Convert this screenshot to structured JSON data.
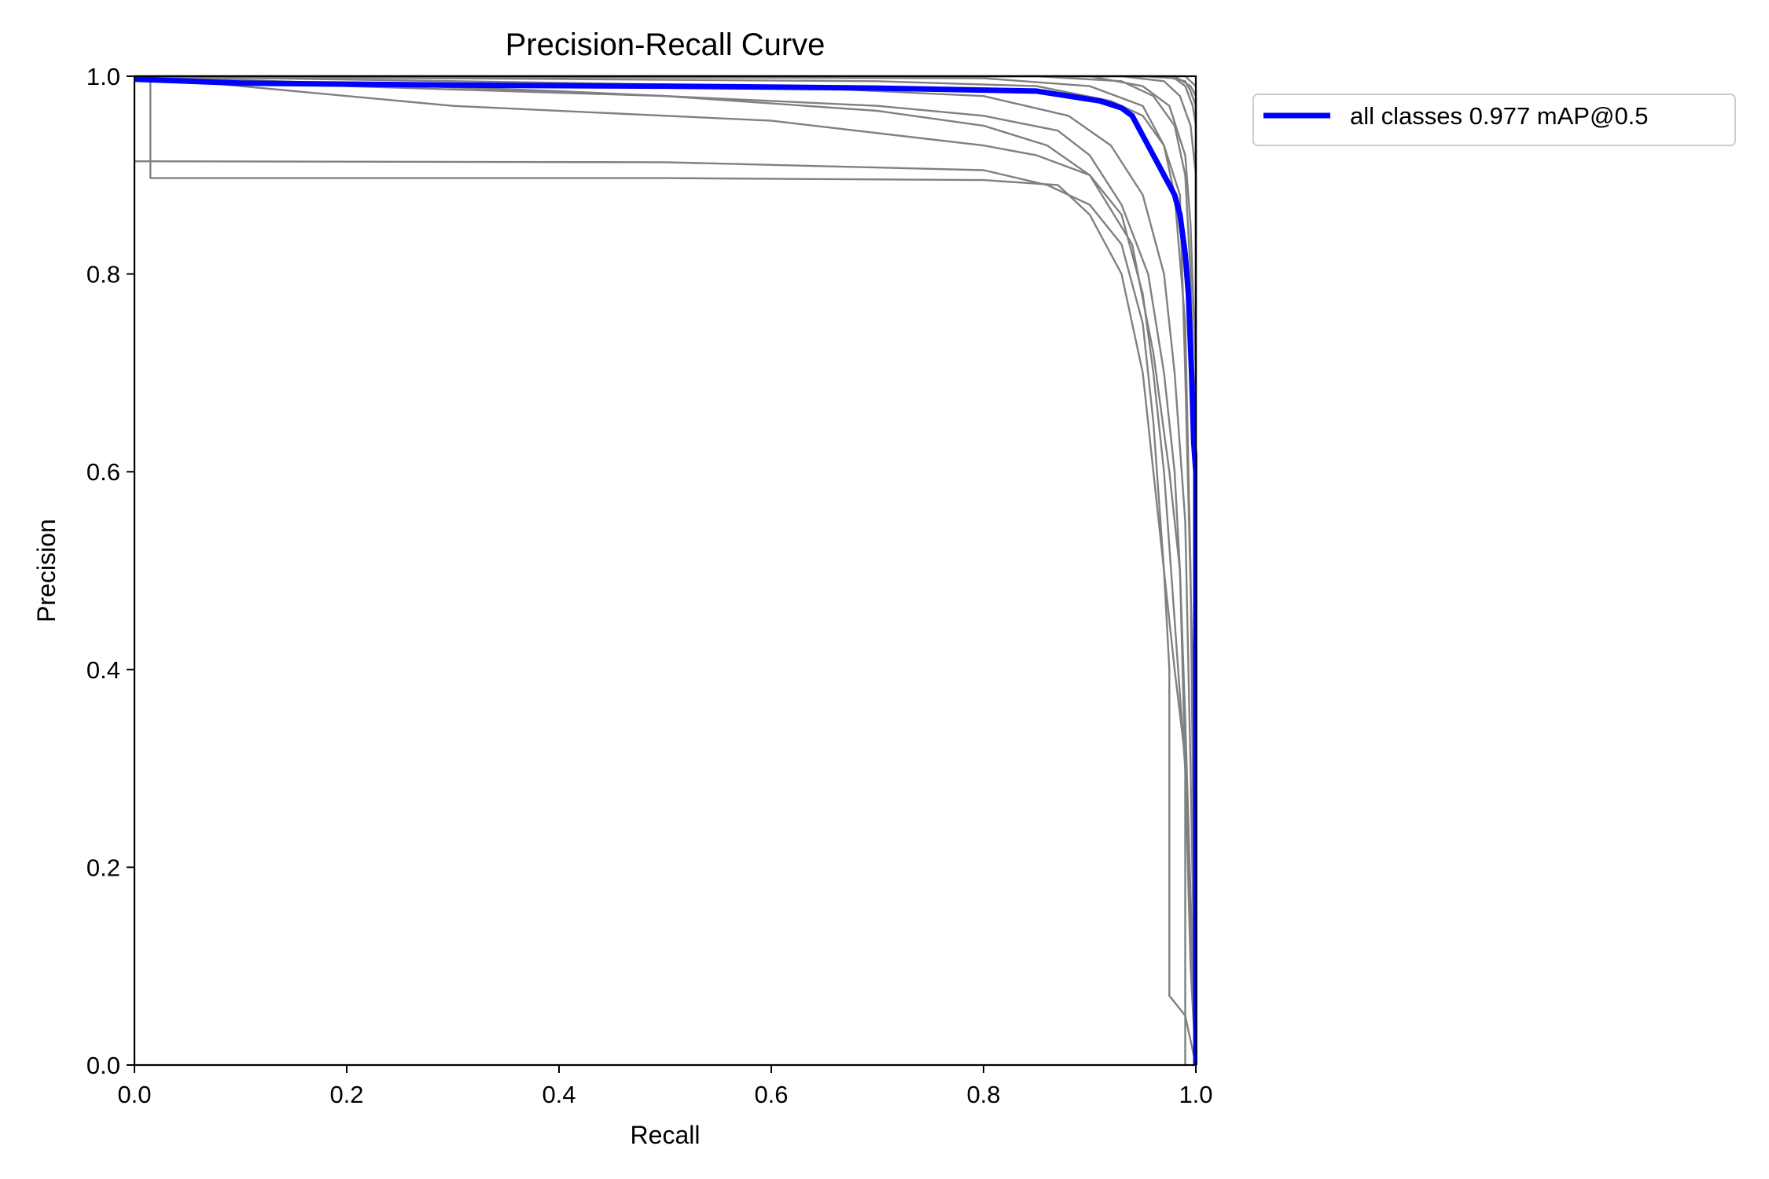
{
  "chart_data": {
    "type": "line",
    "title": "Precision-Recall Curve",
    "xlabel": "Recall",
    "ylabel": "Precision",
    "xlim": [
      0,
      1
    ],
    "ylim": [
      0,
      1
    ],
    "x_ticks": [
      "0.0",
      "0.2",
      "0.4",
      "0.6",
      "0.8",
      "1.0"
    ],
    "y_ticks": [
      "0.0",
      "0.2",
      "0.4",
      "0.6",
      "0.8",
      "1.0"
    ],
    "grid": false,
    "legend_position": "outside-top-right",
    "legend_entries": [
      "all classes 0.977 mAP@0.5"
    ],
    "colors": {
      "all_classes": "#0000ff",
      "per_class": "#808080",
      "axes": "#000000"
    },
    "series": [
      {
        "name": "all classes 0.977 mAP@0.5",
        "color": "#0000ff",
        "x": [
          0.0,
          0.1,
          0.3,
          0.5,
          0.7,
          0.85,
          0.88,
          0.91,
          0.93,
          0.94,
          0.95,
          0.955,
          0.96,
          0.965,
          0.97,
          0.975,
          0.98,
          0.985,
          0.99,
          0.993,
          0.996,
          0.998,
          1.0,
          1.0
        ],
        "y": [
          0.997,
          0.993,
          0.991,
          0.99,
          0.988,
          0.985,
          0.98,
          0.975,
          0.968,
          0.96,
          0.94,
          0.93,
          0.92,
          0.91,
          0.9,
          0.89,
          0.88,
          0.86,
          0.82,
          0.78,
          0.7,
          0.63,
          0.6,
          0.0
        ]
      },
      {
        "color": "#808080",
        "x": [
          0.0,
          0.015,
          0.015,
          0.5,
          0.8,
          0.87,
          0.9,
          0.93,
          0.95,
          0.96,
          0.97,
          0.98,
          0.99,
          0.99
        ],
        "y": [
          1.0,
          1.0,
          0.897,
          0.897,
          0.895,
          0.89,
          0.86,
          0.8,
          0.7,
          0.6,
          0.5,
          0.4,
          0.31,
          0.0
        ]
      },
      {
        "color": "#808080",
        "x": [
          0.0,
          0.5,
          0.8,
          0.86,
          0.9,
          0.93,
          0.95,
          0.96,
          0.97,
          0.975,
          0.975,
          0.99,
          1.0
        ],
        "y": [
          0.914,
          0.913,
          0.905,
          0.89,
          0.87,
          0.83,
          0.75,
          0.65,
          0.5,
          0.4,
          0.07,
          0.05,
          0.0
        ]
      },
      {
        "color": "#808080",
        "x": [
          0.0,
          0.3,
          0.6,
          0.8,
          0.85,
          0.9,
          0.93,
          0.95,
          0.96,
          0.97,
          0.98,
          0.99,
          0.995,
          1.0
        ],
        "y": [
          1.0,
          0.97,
          0.955,
          0.93,
          0.92,
          0.9,
          0.86,
          0.78,
          0.7,
          0.6,
          0.45,
          0.3,
          0.1,
          0.0
        ]
      },
      {
        "color": "#808080",
        "x": [
          0.0,
          0.2,
          0.5,
          0.7,
          0.8,
          0.86,
          0.9,
          0.94,
          0.96,
          0.975,
          0.985,
          0.99,
          1.0
        ],
        "y": [
          1.0,
          0.99,
          0.98,
          0.965,
          0.95,
          0.93,
          0.9,
          0.83,
          0.72,
          0.6,
          0.5,
          0.3,
          0.0
        ]
      },
      {
        "color": "#808080",
        "x": [
          0.0,
          0.4,
          0.7,
          0.8,
          0.87,
          0.9,
          0.93,
          0.955,
          0.97,
          0.98,
          0.985,
          0.99,
          1.0
        ],
        "y": [
          1.0,
          0.985,
          0.97,
          0.96,
          0.945,
          0.92,
          0.87,
          0.8,
          0.7,
          0.6,
          0.5,
          0.35,
          0.0
        ]
      },
      {
        "color": "#808080",
        "x": [
          0.0,
          0.6,
          0.8,
          0.88,
          0.92,
          0.95,
          0.97,
          0.98,
          0.99,
          0.995,
          1.0
        ],
        "y": [
          1.0,
          0.99,
          0.98,
          0.96,
          0.93,
          0.88,
          0.8,
          0.7,
          0.55,
          0.3,
          0.0
        ]
      },
      {
        "color": "#808080",
        "x": [
          0.0,
          0.7,
          0.85,
          0.92,
          0.95,
          0.97,
          0.98,
          0.99,
          0.995,
          1.0
        ],
        "y": [
          1.0,
          0.995,
          0.99,
          0.975,
          0.96,
          0.93,
          0.88,
          0.75,
          0.5,
          0.0
        ]
      },
      {
        "color": "#808080",
        "x": [
          0.0,
          0.8,
          0.9,
          0.95,
          0.97,
          0.985,
          0.99,
          0.997,
          1.0
        ],
        "y": [
          1.0,
          0.998,
          0.99,
          0.97,
          0.93,
          0.88,
          0.7,
          0.4,
          0.0
        ]
      },
      {
        "color": "#808080",
        "x": [
          0.0,
          0.85,
          0.93,
          0.96,
          0.98,
          0.99,
          0.995,
          1.0,
          1.0
        ],
        "y": [
          1.0,
          1.0,
          0.995,
          0.98,
          0.95,
          0.9,
          0.8,
          0.6,
          0.0
        ]
      },
      {
        "color": "#808080",
        "x": [
          0.0,
          0.9,
          0.95,
          0.975,
          0.99,
          0.995,
          1.0,
          1.0
        ],
        "y": [
          1.0,
          1.0,
          0.99,
          0.97,
          0.92,
          0.85,
          0.7,
          0.0
        ]
      },
      {
        "color": "#808080",
        "x": [
          0.0,
          0.93,
          0.97,
          0.985,
          0.995,
          1.0,
          1.0
        ],
        "y": [
          1.0,
          1.0,
          0.995,
          0.98,
          0.95,
          0.9,
          0.0
        ]
      },
      {
        "color": "#808080",
        "x": [
          0.0,
          0.95,
          0.98,
          0.99,
          0.997,
          1.0,
          1.0
        ],
        "y": [
          1.0,
          1.0,
          0.998,
          0.99,
          0.97,
          0.95,
          0.0
        ]
      },
      {
        "color": "#808080",
        "x": [
          0.0,
          0.97,
          0.99,
          0.995,
          1.0,
          1.0
        ],
        "y": [
          1.0,
          1.0,
          0.995,
          0.985,
          0.97,
          0.0
        ]
      },
      {
        "color": "#808080",
        "x": [
          0.0,
          0.98,
          0.995,
          1.0,
          1.0
        ],
        "y": [
          1.0,
          1.0,
          0.99,
          0.98,
          0.0
        ]
      },
      {
        "color": "#808080",
        "x": [
          0.0,
          0.99,
          1.0,
          1.0
        ],
        "y": [
          1.0,
          1.0,
          0.99,
          0.0
        ]
      }
    ]
  }
}
